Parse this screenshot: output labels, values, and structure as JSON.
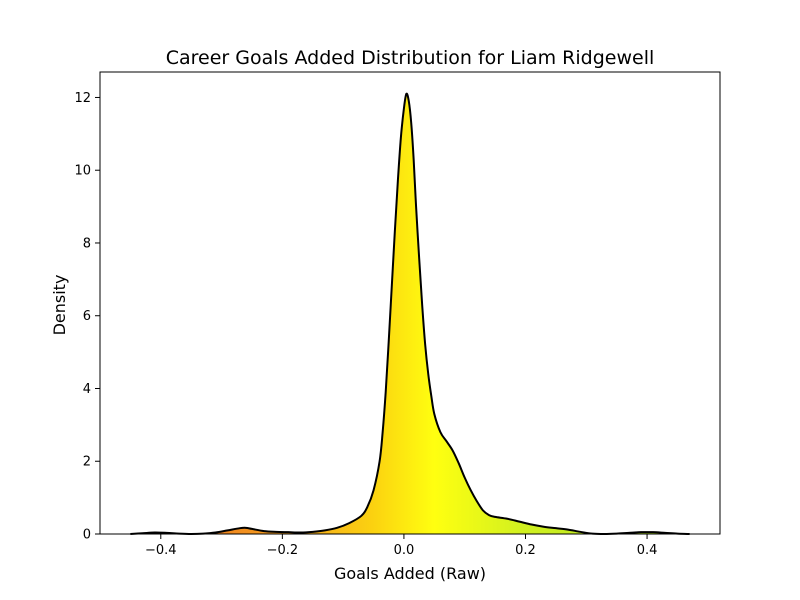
{
  "chart_data": {
    "type": "area",
    "title": "Career Goals Added Distribution for Liam Ridgewell",
    "xlabel": "Goals Added (Raw)",
    "ylabel": "Density",
    "xlim": [
      -0.5,
      0.52
    ],
    "ylim": [
      0,
      12.7
    ],
    "x_ticks": [
      -0.4,
      -0.2,
      0.0,
      0.2,
      0.4
    ],
    "x_tick_labels": [
      "−0.4",
      "−0.2",
      "0.0",
      "0.2",
      "0.4"
    ],
    "y_ticks": [
      0,
      2,
      4,
      6,
      8,
      10,
      12
    ],
    "y_tick_labels": [
      "0",
      "2",
      "4",
      "6",
      "8",
      "10",
      "12"
    ],
    "grid": false,
    "line_color": "#000000",
    "fill_gradient": {
      "colormap": "red-yellow-green",
      "stops": [
        {
          "x": -0.45,
          "color": "#e8601c"
        },
        {
          "x": -0.2,
          "color": "#f5a020"
        },
        {
          "x": -0.05,
          "color": "#fbd210"
        },
        {
          "x": 0.05,
          "color": "#ffff10"
        },
        {
          "x": 0.2,
          "color": "#d0f020"
        },
        {
          "x": 0.47,
          "color": "#a8e020"
        }
      ]
    },
    "series": [
      {
        "x": [
          -0.45,
          -0.43,
          -0.41,
          -0.39,
          -0.37,
          -0.35,
          -0.33,
          -0.31,
          -0.29,
          -0.27,
          -0.26,
          -0.25,
          -0.23,
          -0.21,
          -0.19,
          -0.17,
          -0.15,
          -0.13,
          -0.11,
          -0.09,
          -0.07,
          -0.06,
          -0.05,
          -0.04,
          -0.035,
          -0.03,
          -0.025,
          -0.02,
          -0.015,
          -0.01,
          -0.005,
          0.0,
          0.004,
          0.008,
          0.012,
          0.016,
          0.02,
          0.025,
          0.03,
          0.035,
          0.04,
          0.045,
          0.05,
          0.06,
          0.07,
          0.08,
          0.09,
          0.1,
          0.11,
          0.12,
          0.13,
          0.14,
          0.15,
          0.17,
          0.19,
          0.21,
          0.23,
          0.25,
          0.27,
          0.29,
          0.31,
          0.33,
          0.35,
          0.37,
          0.39,
          0.41,
          0.43,
          0.45,
          0.47
        ],
        "y": [
          0.0,
          0.02,
          0.04,
          0.03,
          0.01,
          0.0,
          0.01,
          0.04,
          0.1,
          0.16,
          0.17,
          0.14,
          0.08,
          0.06,
          0.05,
          0.04,
          0.06,
          0.1,
          0.17,
          0.3,
          0.5,
          0.75,
          1.2,
          2.0,
          2.8,
          3.9,
          5.3,
          6.8,
          8.3,
          9.7,
          10.9,
          11.7,
          12.1,
          11.9,
          11.3,
          10.3,
          9.0,
          7.6,
          6.3,
          5.2,
          4.4,
          3.8,
          3.3,
          2.8,
          2.55,
          2.3,
          1.95,
          1.55,
          1.2,
          0.9,
          0.65,
          0.52,
          0.47,
          0.42,
          0.34,
          0.26,
          0.2,
          0.16,
          0.12,
          0.06,
          0.01,
          0.0,
          0.01,
          0.03,
          0.05,
          0.05,
          0.03,
          0.01,
          0.0
        ]
      }
    ]
  }
}
